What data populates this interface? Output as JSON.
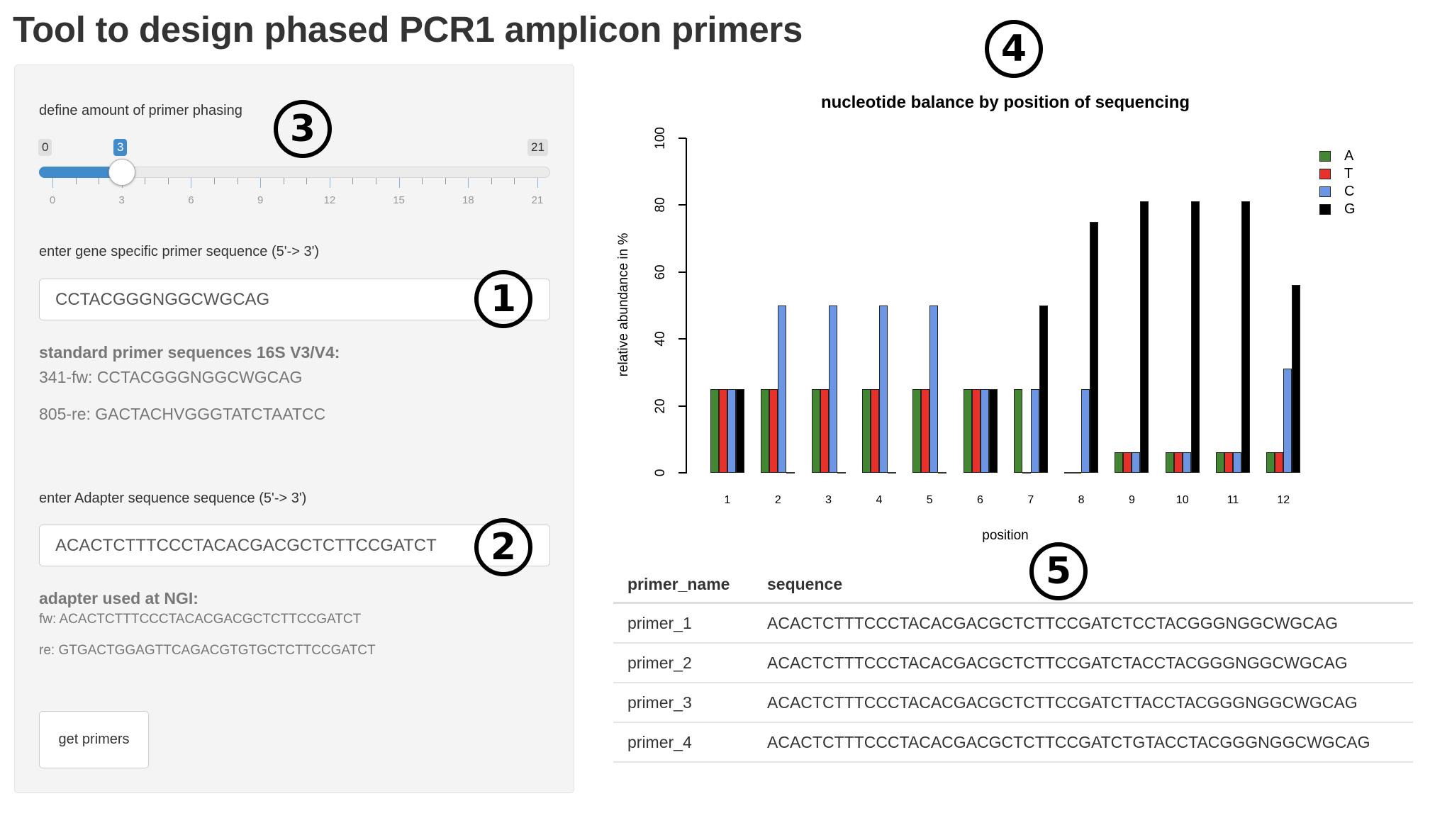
{
  "page": {
    "title": "Tool to design phased PCR1 amplicon primers"
  },
  "sidebar": {
    "phasing": {
      "label": "define amount of primer phasing",
      "min": "0",
      "max": "21",
      "value": "3",
      "tick_labels": [
        "0",
        "3",
        "6",
        "9",
        "12",
        "15",
        "18",
        "21"
      ]
    },
    "gene_primer": {
      "label": "enter gene specific primer sequence (5'-> 3')",
      "value": "CCTACGGGNGGCWGCAG"
    },
    "standard_primers": {
      "heading": "standard primer sequences 16S V3/V4:",
      "fw": "341-fw: CCTACGGGNGGCWGCAG",
      "re": "805-re: GACTACHVGGGTATCTAATCC"
    },
    "adapter": {
      "label": "enter Adapter sequence sequence (5'-> 3')",
      "value": "ACACTCTTTCCCTACACGACGCTCTTCCGATCT"
    },
    "ngi_adapter": {
      "heading": "adapter used at NGI:",
      "fw": "fw: ACACTCTTTCCCTACACGACGCTCTTCCGATCT",
      "re": "re: GTGACTGGAGTTCAGACGTGTGCTCTTCCGATCT"
    },
    "button_label": "get primers"
  },
  "annotations": [
    "1",
    "2",
    "3",
    "4",
    "5"
  ],
  "chart_data": {
    "type": "bar",
    "title": "nucleotide balance by position of sequencing",
    "xlabel": "position",
    "ylabel": "relative abundance in %",
    "ylim": [
      0,
      100
    ],
    "yticks": [
      "0",
      "20",
      "40",
      "60",
      "80",
      "100"
    ],
    "categories": [
      "1",
      "2",
      "3",
      "4",
      "5",
      "6",
      "7",
      "8",
      "9",
      "10",
      "11",
      "12"
    ],
    "grid": false,
    "legend_position": "top-right",
    "series": [
      {
        "name": "A",
        "color": "#438733",
        "values": [
          25,
          25,
          25,
          25,
          25,
          25,
          25,
          0,
          6.25,
          6.25,
          6.25,
          6.25
        ]
      },
      {
        "name": "T",
        "color": "#e8312a",
        "values": [
          25,
          25,
          25,
          25,
          25,
          25,
          0,
          0,
          6.25,
          6.25,
          6.25,
          6.25
        ]
      },
      {
        "name": "C",
        "color": "#6c96e4",
        "values": [
          25,
          50,
          50,
          50,
          50,
          25,
          25,
          25,
          6.25,
          6.25,
          6.25,
          31.25
        ]
      },
      {
        "name": "G",
        "color": "#000000",
        "values": [
          25,
          0,
          0,
          0,
          0,
          25,
          50,
          75,
          81.25,
          81.25,
          81.25,
          56.25
        ]
      }
    ]
  },
  "table": {
    "columns": [
      "primer_name",
      "sequence"
    ],
    "rows": [
      {
        "primer_name": "primer_1",
        "sequence": "ACACTCTTTCCCTACACGACGCTCTTCCGATCTCCTACGGGNGGCWGCAG"
      },
      {
        "primer_name": "primer_2",
        "sequence": "ACACTCTTTCCCTACACGACGCTCTTCCGATCTACCTACGGGNGGCWGCAG"
      },
      {
        "primer_name": "primer_3",
        "sequence": "ACACTCTTTCCCTACACGACGCTCTTCCGATCTTACCTACGGGNGGCWGCAG"
      },
      {
        "primer_name": "primer_4",
        "sequence": "ACACTCTTTCCCTACACGACGCTCTTCCGATCTGTACCTACGGGNGGCWGCAG"
      }
    ]
  }
}
